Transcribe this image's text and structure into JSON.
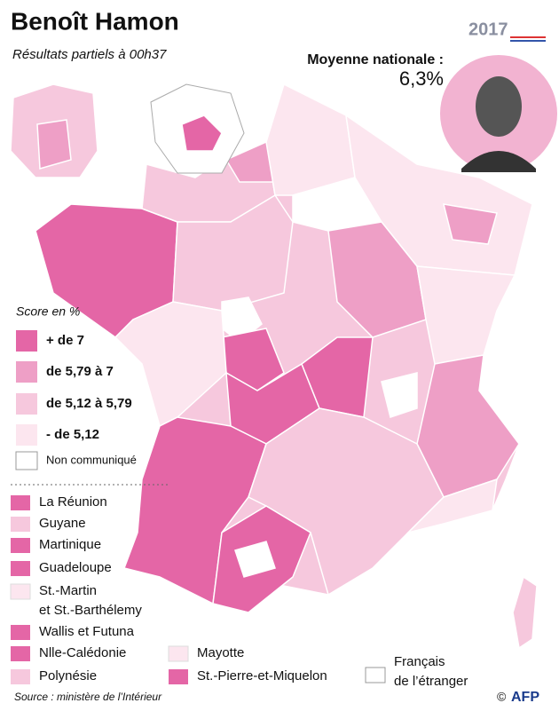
{
  "header": {
    "title": "Benoît Hamon",
    "subtitle": "Résultats partiels à 00h37",
    "year": "2017",
    "average_label": "Moyenne nationale :",
    "average_value": "6,3%"
  },
  "legend": {
    "title": "Score en %",
    "items": [
      {
        "label": "+ de 7",
        "color": "#e466a6"
      },
      {
        "label": "de 5,79 à 7",
        "color": "#ee9fc6"
      },
      {
        "label": "de 5,12 à 5,79",
        "color": "#f6c8dd"
      },
      {
        "label": "- de 5,12",
        "color": "#fce6ef"
      },
      {
        "label": "Non communiqué",
        "color": "#ffffff"
      }
    ]
  },
  "overseas": [
    {
      "lines": [
        "La Réunion"
      ],
      "color": "#e466a6"
    },
    {
      "lines": [
        "Guyane"
      ],
      "color": "#f6c8dd"
    },
    {
      "lines": [
        "Martinique"
      ],
      "color": "#e466a6"
    },
    {
      "lines": [
        "Guadeloupe"
      ],
      "color": "#e466a6"
    },
    {
      "lines": [
        "St.-Martin",
        "et St.-Barthélemy"
      ],
      "color": "#fce6ef"
    },
    {
      "lines": [
        "Wallis et Futuna"
      ],
      "color": "#e466a6"
    },
    {
      "lines": [
        "Nlle-Calédonie"
      ],
      "color": "#e466a6"
    },
    {
      "lines": [
        "Polynésie"
      ],
      "color": "#f6c8dd"
    },
    {
      "lines": [
        "Mayotte"
      ],
      "color": "#fce6ef"
    },
    {
      "lines": [
        "St.-Pierre-et-Miquelon"
      ],
      "color": "#e466a6"
    },
    {
      "lines": [
        "Français",
        "de l’étranger"
      ],
      "color": "#ffffff"
    }
  ],
  "footer": {
    "source": "Source : ministère de l’Intérieur",
    "copyright": "©",
    "agency": "AFP"
  }
}
